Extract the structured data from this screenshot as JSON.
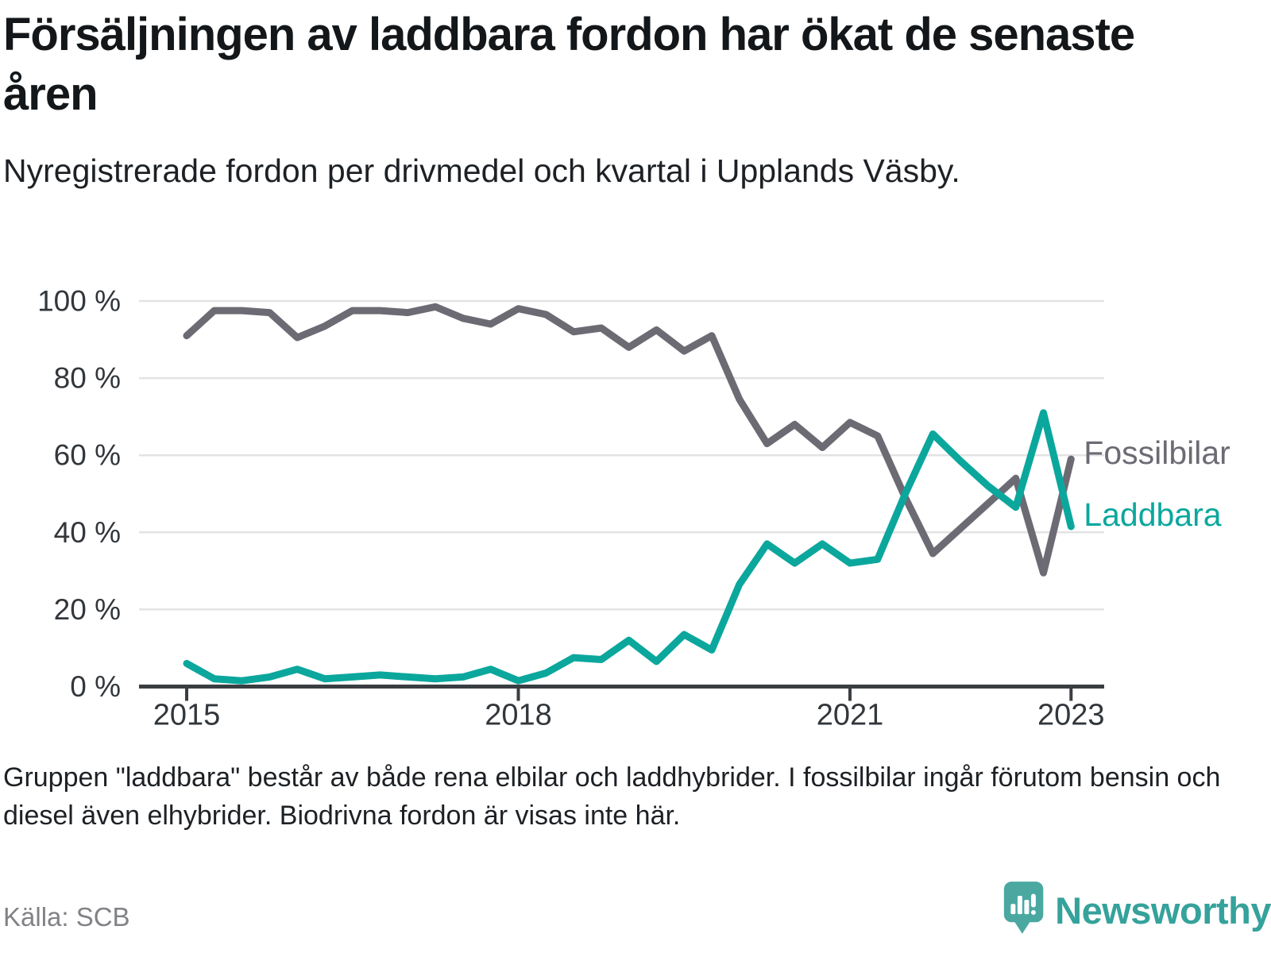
{
  "header": {
    "title": "Försäljningen av laddbara fordon har ökat de senaste åren",
    "subtitle": "Nyregistrerade fordon per drivmedel och kvartal i Upplands Väsby."
  },
  "chart_data": {
    "type": "line",
    "unit": "percent",
    "x": [
      "2015K1",
      "2015K2",
      "2015K3",
      "2015K4",
      "2016K1",
      "2016K2",
      "2016K3",
      "2016K4",
      "2017K1",
      "2017K2",
      "2017K3",
      "2017K4",
      "2018K1",
      "2018K2",
      "2018K3",
      "2018K4",
      "2019K1",
      "2019K2",
      "2019K3",
      "2019K4",
      "2020K1",
      "2020K2",
      "2020K3",
      "2020K4",
      "2021K1",
      "2021K2",
      "2021K3",
      "2021K4",
      "2022K1",
      "2022K2",
      "2022K3",
      "2022K4",
      "2023K1"
    ],
    "series": [
      {
        "name": "Fossilbilar",
        "color": "#6c6b74",
        "values": [
          91,
          97.5,
          97.5,
          97,
          90.5,
          93.5,
          97.5,
          97.5,
          97,
          98.5,
          95.5,
          94,
          98,
          96.5,
          92,
          93,
          88,
          92.5,
          87,
          91,
          74.5,
          63,
          68,
          62,
          68.5,
          65,
          49,
          34.5,
          41,
          47.5,
          54,
          29.5,
          59
        ]
      },
      {
        "name": "Laddbara",
        "color": "#0ba79d",
        "values": [
          6,
          2,
          1.5,
          2.5,
          4.5,
          2,
          2.5,
          3,
          2.5,
          2,
          2.5,
          4.5,
          1.5,
          3.5,
          7.5,
          7,
          12,
          6.5,
          13.5,
          9.5,
          26.5,
          37,
          32,
          37,
          32,
          33,
          50,
          65.5,
          58.5,
          52,
          46.5,
          71,
          41.5
        ]
      }
    ],
    "ylim": [
      0,
      100
    ],
    "yticks": [
      0,
      20,
      40,
      60,
      80,
      100
    ],
    "ytick_suffix": " %",
    "xticks": [
      {
        "label": "2015",
        "index": 0
      },
      {
        "label": "2018",
        "index": 12
      },
      {
        "label": "2021",
        "index": 24
      },
      {
        "label": "2023",
        "index": 32
      }
    ],
    "grid": "horizontal",
    "legend_position": "right-of-line-ends",
    "axis_color": "#32373c",
    "grid_color": "#e3e3e3"
  },
  "footer": {
    "note": "Gruppen \"laddbara\" består av både rena elbilar och laddhybrider. I fossilbilar ingår förutom bensin och diesel även elhybrider. Biodrivna fordon är visas inte här.",
    "source": "Källa: SCB",
    "brand": "Newsworthy"
  }
}
